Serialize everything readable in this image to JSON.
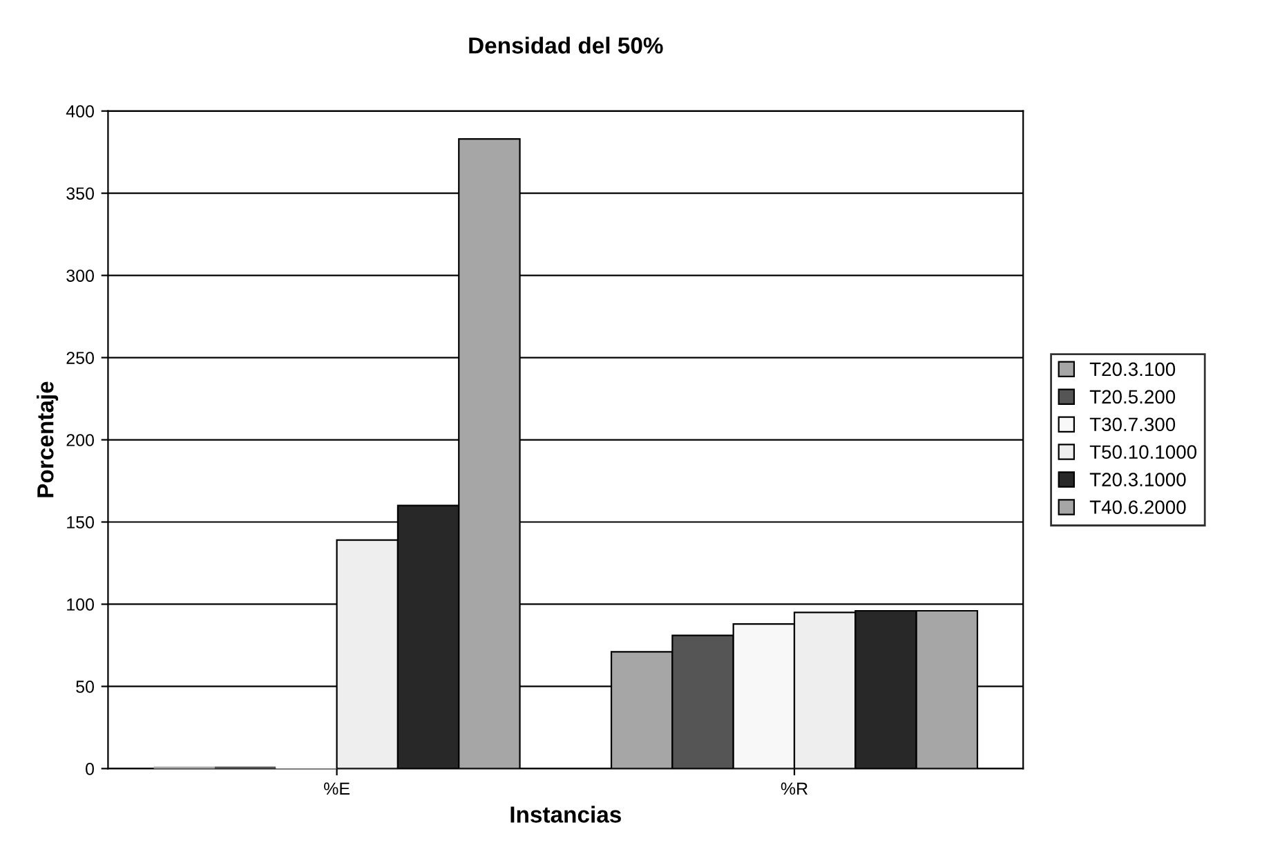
{
  "chart_data": {
    "type": "bar",
    "title": "Densidad del 50%",
    "xlabel": "Instancias",
    "ylabel": "Porcentaje",
    "categories": [
      "%E",
      "%R"
    ],
    "series": [
      {
        "name": "T20.3.100",
        "color": "#a6a6a6",
        "values": [
          0,
          71
        ]
      },
      {
        "name": "T20.5.200",
        "color": "#555555",
        "values": [
          0,
          81
        ]
      },
      {
        "name": "T30.7.300",
        "color": "#f8f8f8",
        "values": [
          0,
          88
        ]
      },
      {
        "name": "T50.10.1000",
        "color": "#eeeeee",
        "values": [
          139,
          95
        ]
      },
      {
        "name": "T20.3.1000",
        "color": "#282828",
        "values": [
          160,
          96
        ]
      },
      {
        "name": "T40.6.2000",
        "color": "#a6a6a6",
        "values": [
          383,
          96
        ]
      }
    ],
    "ylim": [
      0,
      400
    ],
    "yticks": [
      0,
      50,
      100,
      150,
      200,
      250,
      300,
      350,
      400
    ],
    "grid": "y",
    "legend": "right"
  }
}
